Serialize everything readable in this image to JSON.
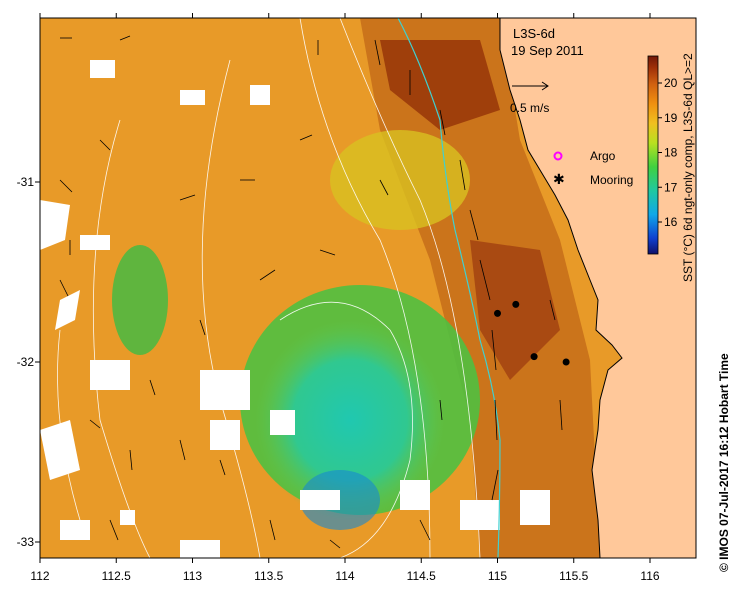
{
  "map": {
    "title": "L3S-6d",
    "date": "19 Sep 2011",
    "scale_arrow_label": "0.5 m/s",
    "scale_arrow_speed": 0.5,
    "legend": [
      {
        "label": "Argo",
        "marker": "ring",
        "color": "#ff00ff"
      },
      {
        "label": "Mooring",
        "marker": "star",
        "color": "#000000"
      }
    ],
    "lon_ticks": [
      "112",
      "112.5",
      "113",
      "113.5",
      "114",
      "114.5",
      "115",
      "115.5",
      "116"
    ],
    "lat_ticks": [
      "-31",
      "-32",
      "-33"
    ],
    "lon_range": [
      112,
      116.3
    ],
    "lat_range": [
      -33.1,
      -30.1
    ],
    "land_color": "#ffc89a",
    "shelf_contour_color": "#40d0d0",
    "contour_color": "#ffffff",
    "moorings": [
      {
        "lon": 115.0,
        "lat": -31.73
      },
      {
        "lon": 115.12,
        "lat": -31.68
      },
      {
        "lon": 115.24,
        "lat": -31.97
      },
      {
        "lon": 115.45,
        "lat": -32.0
      }
    ]
  },
  "colorbar": {
    "title": "SST (°C) 6d ngt-only comp, L3S-6d QL>=2",
    "ticks": [
      "16",
      "17",
      "18",
      "19",
      "20"
    ],
    "range": [
      15.2,
      20.7
    ]
  },
  "credit": "© IMOS 07-Jul-2017 16:12 Hobart Time"
}
